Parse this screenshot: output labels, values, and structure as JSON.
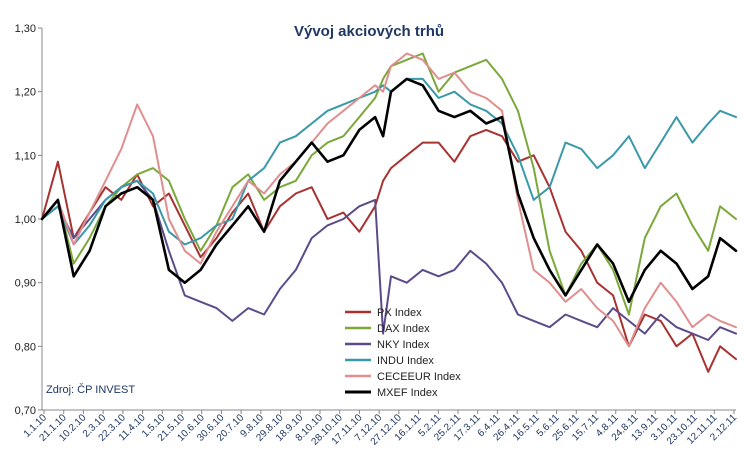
{
  "chart_data": {
    "type": "line",
    "title": "Vývoj akciových trhů",
    "source_note": "Zdroj: ČP INVEST",
    "ylim": [
      0.7,
      1.3
    ],
    "yticks": [
      "0,70",
      "0,80",
      "0,90",
      "1,00",
      "1,10",
      "1,20",
      "1,30"
    ],
    "x_tick_labels": [
      "1.1.10",
      "21.1.10",
      "10.2.10",
      "2.3.10",
      "22.3.10",
      "11.4.10",
      "1.5.10",
      "21.5.10",
      "10.6.10",
      "30.6.10",
      "20.7.10",
      "9.8.10",
      "29.8.10",
      "18.9.10",
      "8.10.10",
      "28.10.10",
      "17.11.10",
      "7.12.10",
      "27.12.10",
      "16.1.11",
      "5.2.11",
      "25.2.11",
      "17.3.11",
      "6.4.11",
      "26.4.11",
      "16.5.11",
      "5.6.11",
      "25.6.11",
      "15.7.11",
      "4.8.11",
      "24.8.11",
      "13.9.11",
      "3.10.11",
      "23.10.11",
      "12.11.11",
      "2.12.11"
    ],
    "grid": false,
    "legend_position": "center-bottom",
    "x_positions": [
      0,
      4,
      8,
      12,
      16,
      20,
      24,
      28,
      32,
      36,
      40,
      44,
      48,
      52,
      56,
      60,
      64,
      68,
      72,
      76,
      80,
      84,
      86,
      88,
      92,
      96,
      100,
      104,
      108,
      112,
      116,
      120,
      124,
      128,
      132,
      136,
      140,
      144,
      148,
      152,
      156,
      160,
      164,
      168,
      171,
      175
    ],
    "series": [
      {
        "name": "PX Index",
        "color": "#a83232",
        "width": 2,
        "values": [
          1.0,
          1.09,
          0.97,
          1.01,
          1.05,
          1.03,
          1.07,
          1.02,
          1.04,
          0.99,
          0.94,
          0.97,
          1.01,
          1.04,
          0.98,
          1.02,
          1.04,
          1.05,
          1.0,
          1.01,
          0.98,
          1.02,
          1.06,
          1.08,
          1.1,
          1.12,
          1.12,
          1.09,
          1.13,
          1.14,
          1.13,
          1.09,
          1.1,
          1.05,
          0.98,
          0.95,
          0.9,
          0.88,
          0.8,
          0.85,
          0.84,
          0.8,
          0.82,
          0.76,
          0.8,
          0.78
        ]
      },
      {
        "name": "DAX Index",
        "color": "#7aa83a",
        "width": 2,
        "values": [
          1.0,
          1.03,
          0.93,
          0.97,
          1.02,
          1.05,
          1.07,
          1.08,
          1.06,
          1.0,
          0.95,
          0.99,
          1.05,
          1.07,
          1.03,
          1.05,
          1.06,
          1.1,
          1.12,
          1.13,
          1.16,
          1.19,
          1.22,
          1.24,
          1.25,
          1.26,
          1.2,
          1.23,
          1.24,
          1.25,
          1.22,
          1.17,
          1.08,
          0.95,
          0.88,
          0.93,
          0.96,
          0.92,
          0.85,
          0.97,
          1.02,
          1.04,
          0.99,
          0.95,
          1.02,
          1.0
        ]
      },
      {
        "name": "NKY Index",
        "color": "#5b4b8a",
        "width": 2,
        "values": [
          1.0,
          1.02,
          0.97,
          1.0,
          1.03,
          1.05,
          1.06,
          1.03,
          0.95,
          0.88,
          0.87,
          0.86,
          0.84,
          0.86,
          0.85,
          0.89,
          0.92,
          0.97,
          0.99,
          1.0,
          1.02,
          1.03,
          0.82,
          0.91,
          0.9,
          0.92,
          0.91,
          0.92,
          0.95,
          0.93,
          0.9,
          0.85,
          0.84,
          0.83,
          0.85,
          0.84,
          0.83,
          0.86,
          0.84,
          0.82,
          0.85,
          0.83,
          0.82,
          0.81,
          0.83,
          0.82
        ]
      },
      {
        "name": "INDU Index",
        "color": "#3a98a8",
        "width": 2,
        "values": [
          1.0,
          1.02,
          0.96,
          0.99,
          1.03,
          1.05,
          1.06,
          1.04,
          0.98,
          0.96,
          0.97,
          0.99,
          1.0,
          1.06,
          1.08,
          1.12,
          1.13,
          1.15,
          1.17,
          1.18,
          1.19,
          1.2,
          1.21,
          1.2,
          1.22,
          1.22,
          1.19,
          1.2,
          1.18,
          1.17,
          1.15,
          1.1,
          1.03,
          1.05,
          1.12,
          1.11,
          1.08,
          1.1,
          1.13,
          1.08,
          1.12,
          1.16,
          1.12,
          1.15,
          1.17,
          1.16
        ]
      },
      {
        "name": "CECEEUR Index",
        "color": "#e08f8f",
        "width": 2,
        "values": [
          1.0,
          1.03,
          0.96,
          1.01,
          1.06,
          1.11,
          1.18,
          1.13,
          1.0,
          0.95,
          0.93,
          0.98,
          1.02,
          1.06,
          1.04,
          1.07,
          1.09,
          1.12,
          1.15,
          1.17,
          1.19,
          1.21,
          1.2,
          1.24,
          1.26,
          1.25,
          1.22,
          1.23,
          1.2,
          1.19,
          1.17,
          1.03,
          0.92,
          0.9,
          0.87,
          0.89,
          0.86,
          0.84,
          0.8,
          0.86,
          0.9,
          0.87,
          0.83,
          0.85,
          0.84,
          0.83
        ]
      },
      {
        "name": "MXEF Index",
        "color": "#000000",
        "width": 2.6,
        "values": [
          1.0,
          1.03,
          0.91,
          0.95,
          1.02,
          1.04,
          1.05,
          1.03,
          0.92,
          0.9,
          0.92,
          0.96,
          0.99,
          1.02,
          0.98,
          1.06,
          1.09,
          1.12,
          1.09,
          1.1,
          1.14,
          1.16,
          1.13,
          1.2,
          1.22,
          1.21,
          1.17,
          1.16,
          1.17,
          1.15,
          1.16,
          1.04,
          0.97,
          0.92,
          0.88,
          0.92,
          0.96,
          0.93,
          0.87,
          0.92,
          0.95,
          0.93,
          0.89,
          0.91,
          0.97,
          0.95
        ]
      }
    ]
  }
}
